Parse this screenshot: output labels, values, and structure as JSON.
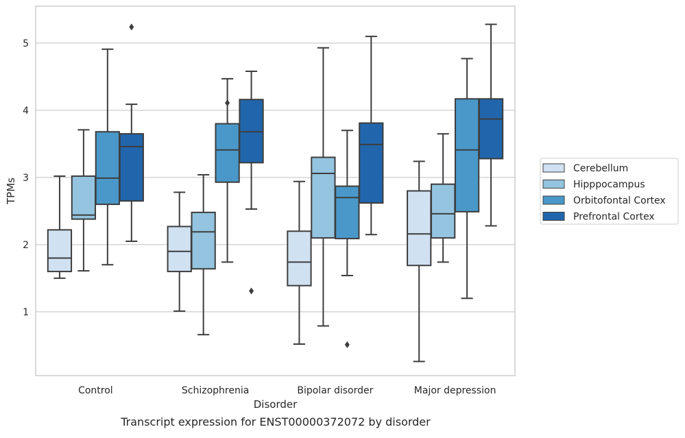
{
  "caption": "Transcript expression for ENST00000372072 by disorder",
  "chart_data": {
    "type": "boxplot",
    "title": "",
    "xlabel": "Disorder",
    "ylabel": "TPMs",
    "categories": [
      "Control",
      "Schizophrenia",
      "Bipolar disorder",
      "Major depression"
    ],
    "yticks": [
      1,
      2,
      3,
      4,
      5
    ],
    "ylim": [
      0.05,
      5.55
    ],
    "grid": "horizontal",
    "legend_position": "right",
    "series": [
      {
        "name": "Cerebellum",
        "color": "#d0e1f2",
        "boxes": [
          {
            "whislo": 1.5,
            "q1": 1.6,
            "med": 1.8,
            "q3": 2.22,
            "whishi": 3.02,
            "fliers": []
          },
          {
            "whislo": 1.01,
            "q1": 1.6,
            "med": 1.9,
            "q3": 2.27,
            "whishi": 2.78,
            "fliers": []
          },
          {
            "whislo": 0.52,
            "q1": 1.39,
            "med": 1.74,
            "q3": 2.2,
            "whishi": 2.94,
            "fliers": []
          },
          {
            "whislo": 0.26,
            "q1": 1.69,
            "med": 2.16,
            "q3": 2.8,
            "whishi": 3.24,
            "fliers": []
          }
        ]
      },
      {
        "name": "Hipppocampus",
        "color": "#94c4df",
        "boxes": [
          {
            "whislo": 1.61,
            "q1": 2.38,
            "med": 2.44,
            "q3": 3.02,
            "whishi": 3.71,
            "fliers": []
          },
          {
            "whislo": 0.66,
            "q1": 1.64,
            "med": 2.19,
            "q3": 2.48,
            "whishi": 3.04,
            "fliers": []
          },
          {
            "whislo": 0.79,
            "q1": 2.1,
            "med": 3.06,
            "q3": 3.3,
            "whishi": 4.93,
            "fliers": []
          },
          {
            "whislo": 1.74,
            "q1": 2.1,
            "med": 2.46,
            "q3": 2.9,
            "whishi": 3.65,
            "fliers": []
          }
        ]
      },
      {
        "name": "Orbitofontal Cortex",
        "color": "#4a98c9",
        "boxes": [
          {
            "whislo": 1.7,
            "q1": 2.6,
            "med": 2.99,
            "q3": 3.68,
            "whishi": 4.91,
            "fliers": []
          },
          {
            "whislo": 1.74,
            "q1": 2.93,
            "med": 3.41,
            "q3": 3.8,
            "whishi": 4.47,
            "fliers": [
              4.11
            ]
          },
          {
            "whislo": 1.54,
            "q1": 2.09,
            "med": 2.7,
            "q3": 2.87,
            "whishi": 3.7,
            "fliers": [
              0.51
            ]
          },
          {
            "whislo": 1.2,
            "q1": 2.49,
            "med": 3.41,
            "q3": 4.17,
            "whishi": 4.77,
            "fliers": []
          }
        ]
      },
      {
        "name": "Prefrontal Cortex",
        "color": "#2166ac",
        "boxes": [
          {
            "whislo": 2.05,
            "q1": 2.65,
            "med": 3.46,
            "q3": 3.65,
            "whishi": 4.09,
            "fliers": [
              5.24
            ]
          },
          {
            "whislo": 2.53,
            "q1": 3.22,
            "med": 3.68,
            "q3": 4.16,
            "whishi": 4.58,
            "fliers": [
              1.31
            ]
          },
          {
            "whislo": 2.15,
            "q1": 2.62,
            "med": 3.49,
            "q3": 3.81,
            "whishi": 5.1,
            "fliers": []
          },
          {
            "whislo": 2.28,
            "q1": 3.28,
            "med": 3.87,
            "q3": 4.17,
            "whishi": 5.28,
            "fliers": []
          }
        ]
      }
    ]
  }
}
